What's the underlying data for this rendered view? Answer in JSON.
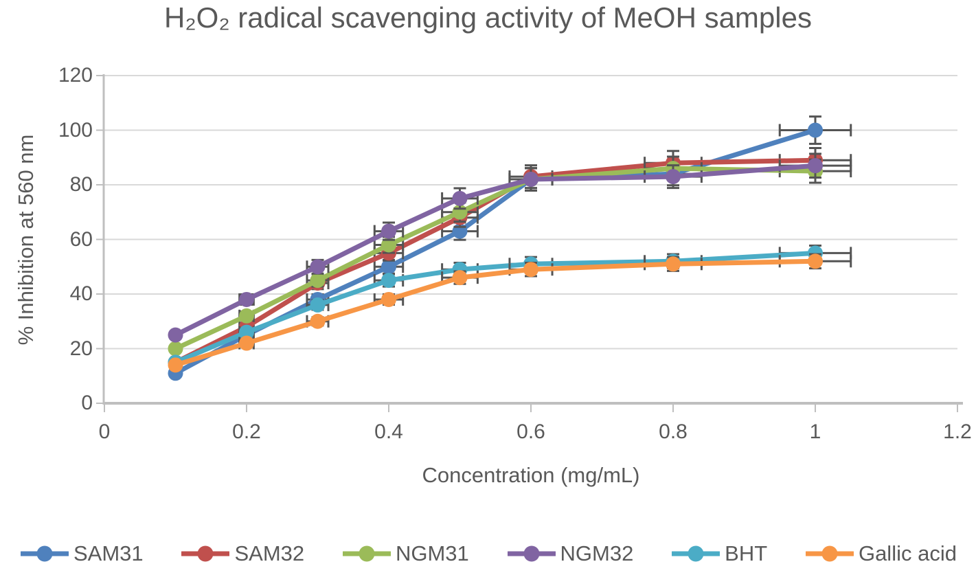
{
  "chart_data": {
    "type": "line",
    "title": "H₂O₂ radical scavenging activity of MeOH samples",
    "xlabel": "Concentration (mg/mL)",
    "ylabel": "% Inhibition at 560 nm",
    "xlim": [
      0,
      1.2
    ],
    "ylim": [
      0,
      120
    ],
    "x_ticks": [
      0,
      0.2,
      0.4,
      0.6,
      0.8,
      1,
      1.2
    ],
    "y_ticks": [
      0,
      20,
      40,
      60,
      80,
      100,
      120
    ],
    "grid": "horizontal-only",
    "legend_position": "bottom",
    "marker": "circle",
    "error_bars": {
      "type": "percentage",
      "value": 5,
      "directions": "x-and-y"
    },
    "x": [
      0.1,
      0.2,
      0.3,
      0.4,
      0.5,
      0.6,
      0.8,
      1.0
    ],
    "series": [
      {
        "name": "SAM31",
        "color": "#4F81BD",
        "values": [
          11,
          25,
          38,
          50,
          63,
          82,
          84,
          100
        ]
      },
      {
        "name": "SAM32",
        "color": "#C0504D",
        "values": [
          15,
          28,
          44,
          55,
          68,
          83,
          88,
          89
        ]
      },
      {
        "name": "NGM31",
        "color": "#9BBB59",
        "values": [
          20,
          32,
          45,
          58,
          70,
          82,
          86,
          85
        ]
      },
      {
        "name": "NGM32",
        "color": "#8064A2",
        "values": [
          25,
          38,
          50,
          63,
          75,
          82,
          83,
          87
        ]
      },
      {
        "name": "BHT",
        "color": "#4BACC6",
        "values": [
          15,
          26,
          36,
          45,
          49,
          51,
          52,
          55
        ]
      },
      {
        "name": "Gallic acid",
        "color": "#F79646",
        "values": [
          14,
          22,
          30,
          38,
          46,
          49,
          51,
          52
        ]
      }
    ],
    "colors": {
      "gridline": "#D9D9D9",
      "axis": "#BFBFBF",
      "text": "#595959",
      "error_bar": "#545454",
      "background": "#FFFFFF"
    }
  }
}
